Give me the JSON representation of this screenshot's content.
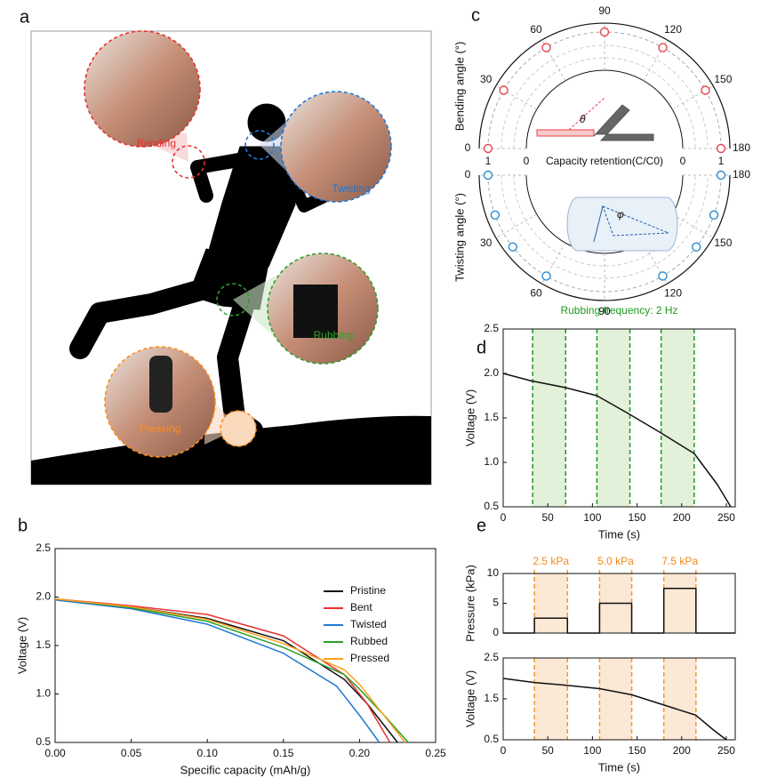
{
  "illustration": {
    "panel": "a",
    "labels": [
      "Bending",
      "Twisting",
      "Rubbing",
      "Pressing"
    ]
  },
  "chart_data": [
    {
      "type": "line",
      "panel": "b",
      "xlabel": "Specific capacity (mAh/g)",
      "ylabel": "Voltage (V)",
      "xlim": [
        0,
        0.25
      ],
      "xticks": [
        {
          "value": 0,
          "label": "0.00"
        },
        {
          "value": 0.05,
          "label": "0.05"
        },
        {
          "value": 0.1,
          "label": "0.10"
        },
        {
          "value": 0.15,
          "label": "0.15"
        },
        {
          "value": 0.2,
          "label": "0.20"
        },
        {
          "value": 0.25,
          "label": "0.25"
        }
      ],
      "ylim": [
        0.5,
        2.5
      ],
      "yticks": [
        0.5,
        {
          "value": 1,
          "label": "1.0"
        },
        1.5,
        {
          "value": 2,
          "label": "2.0"
        },
        2.5
      ],
      "legend": "upper right",
      "series": [
        {
          "name": "Pristine",
          "color": "#111111",
          "x": [
            0,
            0.05,
            0.1,
            0.15,
            0.19,
            0.205,
            0.225
          ],
          "values": [
            1.98,
            1.9,
            1.78,
            1.55,
            1.15,
            0.9,
            0.5
          ]
        },
        {
          "name": "Bent",
          "color": "#e8312f",
          "x": [
            0,
            0.05,
            0.1,
            0.15,
            0.19,
            0.205,
            0.22
          ],
          "values": [
            1.98,
            1.91,
            1.82,
            1.6,
            1.2,
            0.9,
            0.5
          ]
        },
        {
          "name": "Twisted",
          "color": "#1f77d4",
          "x": [
            0,
            0.05,
            0.1,
            0.15,
            0.185,
            0.2,
            0.213
          ],
          "values": [
            1.97,
            1.88,
            1.72,
            1.42,
            1.08,
            0.78,
            0.5
          ]
        },
        {
          "name": "Rubbed",
          "color": "#2ca02c",
          "x": [
            0,
            0.05,
            0.1,
            0.15,
            0.19,
            0.2,
            0.215,
            0.232
          ],
          "values": [
            1.98,
            1.89,
            1.75,
            1.48,
            1.2,
            1.05,
            0.8,
            0.5
          ]
        },
        {
          "name": "Pressed",
          "color": "#ff9f1c",
          "x": [
            0,
            0.05,
            0.1,
            0.15,
            0.19,
            0.2,
            0.215,
            0.23
          ],
          "values": [
            1.98,
            1.9,
            1.77,
            1.52,
            1.25,
            1.1,
            0.8,
            0.5
          ]
        }
      ]
    },
    {
      "type": "polar",
      "panel": "c",
      "radial_label": "Capacity retention(C/C0)",
      "rlim": [
        0,
        1
      ],
      "rticks": [
        0,
        1
      ],
      "upper": {
        "axis_label": "Bending angle (°)",
        "symbol": "θ",
        "color": "#e8434a",
        "angle_ticks": [
          0,
          30,
          60,
          90,
          120,
          150,
          180
        ],
        "angles": [
          0,
          30,
          60,
          90,
          120,
          150,
          180
        ],
        "values": [
          1,
          1,
          1,
          1,
          1,
          1,
          1
        ]
      },
      "lower": {
        "axis_label": "Twisting angle (°)",
        "symbol": "φ",
        "color": "#2a8ccf",
        "angle_ticks": [
          0,
          30,
          60,
          90,
          120,
          150,
          180
        ],
        "angles": [
          0,
          20,
          38,
          60,
          120,
          142,
          160,
          180
        ],
        "values": [
          1,
          1,
          1,
          1,
          1,
          1,
          1,
          1
        ]
      }
    },
    {
      "type": "line",
      "panel": "d",
      "title": "Rubbing frequency: 2 Hz",
      "title_color": "#1f9a1f",
      "band_color": "#e2f1d9",
      "band_edge_color": "#1f9a1f",
      "bands": [
        [
          33,
          70
        ],
        [
          105,
          142
        ],
        [
          177,
          214
        ]
      ],
      "xlabel": "Time (s)",
      "ylabel": "Voltage (V)",
      "xlim": [
        0,
        260
      ],
      "xticks": [
        0,
        50,
        100,
        150,
        200,
        250
      ],
      "ylim": [
        0.5,
        2.5
      ],
      "yticks": [
        0.5,
        {
          "value": 1,
          "label": "1.0"
        },
        1.5,
        {
          "value": 2,
          "label": "2.0"
        },
        2.5
      ],
      "series": [
        {
          "color": "#111111",
          "x": [
            0,
            30,
            70,
            105,
            140,
            177,
            214,
            240,
            255
          ],
          "values": [
            2.0,
            1.92,
            1.84,
            1.75,
            1.55,
            1.33,
            1.1,
            0.75,
            0.5
          ]
        }
      ]
    },
    {
      "type": "line",
      "panel": "e",
      "band_labels": [
        "2.5 kPa",
        "5.0 kPa",
        "7.5 kPa"
      ],
      "band_label_color": "#f08a1c",
      "band_color": "#fbe8d5",
      "band_edge_color": "#f39a2b",
      "bands": [
        [
          35,
          72
        ],
        [
          108,
          144
        ],
        [
          180,
          216
        ]
      ],
      "ylabel": "Pressure (kPa)",
      "xlim": [
        0,
        260
      ],
      "ylim": [
        0,
        10
      ],
      "yticks": [
        0,
        5,
        10
      ],
      "series": [
        {
          "color": "#111111",
          "x": [
            0,
            35,
            35,
            72,
            72,
            108,
            108,
            144,
            144,
            180,
            180,
            216,
            216,
            260
          ],
          "values": [
            0,
            0,
            2.5,
            2.5,
            0,
            0,
            5,
            5,
            0,
            0,
            7.5,
            7.5,
            0,
            0
          ]
        }
      ]
    },
    {
      "type": "line",
      "band_color": "#fbe8d5",
      "band_edge_color": "#f39a2b",
      "bands": [
        [
          35,
          72
        ],
        [
          108,
          144
        ],
        [
          180,
          216
        ]
      ],
      "xlabel": "Time (s)",
      "ylabel": "Voltage (V)",
      "xlim": [
        0,
        260
      ],
      "xticks": [
        0,
        50,
        100,
        150,
        200,
        250
      ],
      "ylim": [
        0.5,
        2.5
      ],
      "yticks": [
        0.5,
        1.5,
        2.5
      ],
      "series": [
        {
          "color": "#111111",
          "x": [
            0,
            35,
            72,
            108,
            144,
            180,
            216,
            235,
            250
          ],
          "values": [
            2.0,
            1.9,
            1.83,
            1.75,
            1.6,
            1.35,
            1.1,
            0.75,
            0.5
          ]
        }
      ]
    }
  ]
}
